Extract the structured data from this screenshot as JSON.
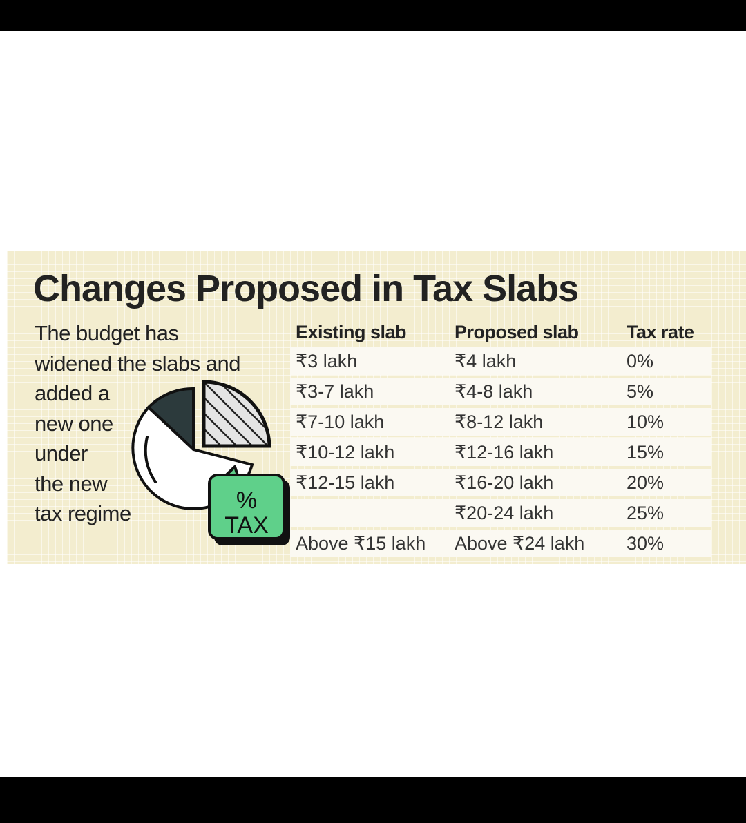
{
  "title": "Changes Proposed in Tax Slabs",
  "blurb_lines": [
    "The budget has",
    "widened the slabs and",
    "added a",
    "new one",
    "under",
    "the new",
    "tax regime"
  ],
  "table": {
    "headers": [
      "Existing slab",
      "Proposed slab",
      "Tax rate"
    ],
    "rows": [
      [
        "₹3 lakh",
        "₹4 lakh",
        "0%"
      ],
      [
        "₹3-7 lakh",
        "₹4-8 lakh",
        "5%"
      ],
      [
        "₹7-10 lakh",
        "₹8-12 lakh",
        "10%"
      ],
      [
        "₹10-12 lakh",
        "₹12-16 lakh",
        "15%"
      ],
      [
        "₹12-15 lakh",
        "₹16-20 lakh",
        "20%"
      ],
      [
        "",
        "₹20-24 lakh",
        "25%"
      ],
      [
        "Above ₹15 lakh",
        "Above ₹24 lakh",
        "30%"
      ]
    ]
  },
  "badge": {
    "symbol": "%",
    "label": "TAX"
  },
  "colors": {
    "background": "#f3edcf",
    "badge": "#5fd08a",
    "dark_slice": "#2c3a3c"
  },
  "icons": [
    "pie-chart-icon",
    "tax-badge-icon"
  ]
}
